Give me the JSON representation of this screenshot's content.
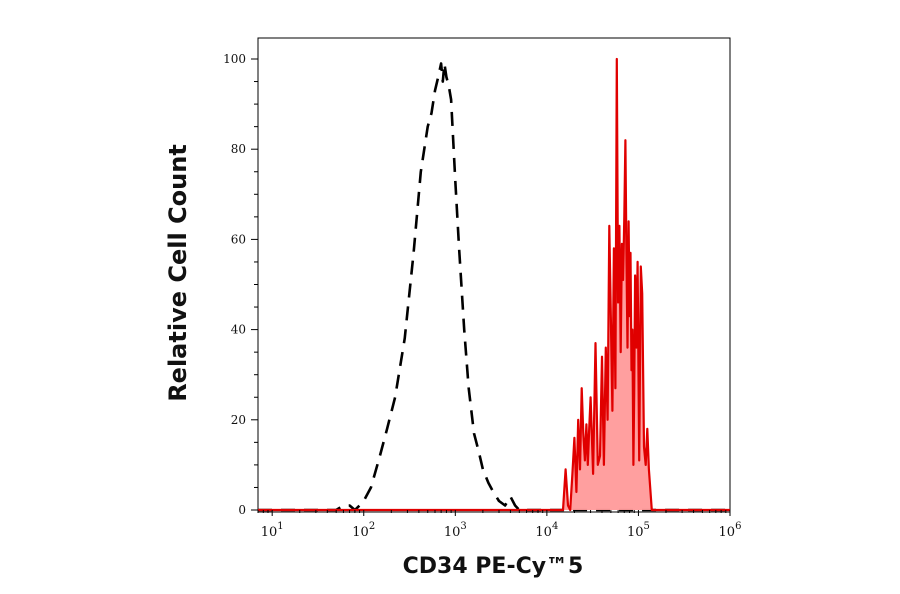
{
  "chart_data": {
    "type": "area",
    "title": "",
    "xlabel": "CD34 PE-Cy™5",
    "ylabel": "Relative Cell Count",
    "xscale": "log",
    "xlim": [
      7,
      1000000
    ],
    "ylim": [
      0,
      100
    ],
    "grid": false,
    "legend": "none",
    "xticks": [
      {
        "base": "10",
        "exp": "1",
        "value": 10
      },
      {
        "base": "10",
        "exp": "2",
        "value": 100
      },
      {
        "base": "10",
        "exp": "3",
        "value": 1000
      },
      {
        "base": "10",
        "exp": "4",
        "value": 10000
      },
      {
        "base": "10",
        "exp": "5",
        "value": 100000
      },
      {
        "base": "10",
        "exp": "6",
        "value": 1000000
      }
    ],
    "yticks": [
      0,
      20,
      40,
      60,
      80,
      100
    ],
    "series": [
      {
        "style": "dashed-outline",
        "color": "#000000",
        "points": [
          [
            7,
            0
          ],
          [
            50,
            0
          ],
          [
            60,
            1
          ],
          [
            70,
            1
          ],
          [
            80,
            0
          ],
          [
            90,
            1
          ],
          [
            100,
            2
          ],
          [
            120,
            5
          ],
          [
            150,
            12
          ],
          [
            180,
            18
          ],
          [
            220,
            25
          ],
          [
            280,
            38
          ],
          [
            350,
            57
          ],
          [
            420,
            75
          ],
          [
            500,
            85
          ],
          [
            550,
            88
          ],
          [
            600,
            93
          ],
          [
            650,
            96
          ],
          [
            700,
            99
          ],
          [
            730,
            95
          ],
          [
            760,
            99
          ],
          [
            800,
            96
          ],
          [
            850,
            94
          ],
          [
            900,
            91
          ],
          [
            1000,
            73
          ],
          [
            1100,
            58
          ],
          [
            1250,
            40
          ],
          [
            1400,
            27
          ],
          [
            1600,
            17
          ],
          [
            1800,
            13
          ],
          [
            2000,
            9
          ],
          [
            2300,
            6
          ],
          [
            2600,
            4
          ],
          [
            3000,
            2
          ],
          [
            3500,
            1
          ],
          [
            4000,
            3
          ],
          [
            4500,
            1
          ],
          [
            5000,
            0
          ],
          [
            1000000,
            0
          ]
        ]
      },
      {
        "style": "filled",
        "color": "#e00000",
        "fill": "#ff9a9a",
        "points": [
          [
            7,
            0
          ],
          [
            15000,
            0
          ],
          [
            16000,
            9
          ],
          [
            17000,
            1
          ],
          [
            18000,
            0
          ],
          [
            19000,
            8
          ],
          [
            20000,
            16
          ],
          [
            21000,
            4
          ],
          [
            22000,
            20
          ],
          [
            23000,
            9
          ],
          [
            24000,
            27
          ],
          [
            25000,
            17
          ],
          [
            26000,
            11
          ],
          [
            27000,
            19
          ],
          [
            28000,
            10
          ],
          [
            29000,
            18
          ],
          [
            30000,
            25
          ],
          [
            32000,
            8
          ],
          [
            34000,
            37
          ],
          [
            36000,
            10
          ],
          [
            38000,
            12
          ],
          [
            40000,
            34
          ],
          [
            42000,
            10
          ],
          [
            44000,
            36
          ],
          [
            46000,
            20
          ],
          [
            48000,
            63
          ],
          [
            50000,
            42
          ],
          [
            52000,
            22
          ],
          [
            54000,
            58
          ],
          [
            56000,
            27
          ],
          [
            58000,
            100
          ],
          [
            60000,
            46
          ],
          [
            62000,
            63
          ],
          [
            64000,
            35
          ],
          [
            66000,
            59
          ],
          [
            68000,
            51
          ],
          [
            70000,
            65
          ],
          [
            72000,
            82
          ],
          [
            74000,
            55
          ],
          [
            76000,
            36
          ],
          [
            78000,
            64
          ],
          [
            80000,
            43
          ],
          [
            82000,
            57
          ],
          [
            84000,
            31
          ],
          [
            86000,
            40
          ],
          [
            88000,
            10
          ],
          [
            90000,
            26
          ],
          [
            92000,
            52
          ],
          [
            95000,
            36
          ],
          [
            98000,
            55
          ],
          [
            102000,
            11
          ],
          [
            106000,
            54
          ],
          [
            110000,
            48
          ],
          [
            115000,
            14
          ],
          [
            120000,
            10
          ],
          [
            125000,
            18
          ],
          [
            130000,
            9
          ],
          [
            140000,
            0
          ],
          [
            1000000,
            0
          ]
        ]
      }
    ]
  }
}
